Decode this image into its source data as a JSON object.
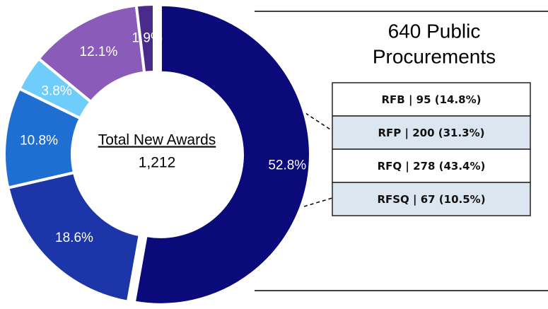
{
  "chart_data": {
    "type": "pie",
    "values": [
      52.8,
      18.6,
      10.8,
      3.8,
      12.1,
      1.9
    ],
    "value_labels": [
      "52.8%",
      "18.6%",
      "10.8%",
      "3.8%",
      "12.1%",
      "1.9%"
    ],
    "colors": [
      "#0b0a7a",
      "#1c35a8",
      "#1f6fd2",
      "#6fcdfb",
      "#8a5bb9",
      "#4a2b8c"
    ],
    "center_title": "Total New Awards",
    "center_value": {
      "value": 1212,
      "label": "1,212"
    }
  },
  "panel": {
    "title_lines": [
      "640 Public",
      "Procurements"
    ],
    "rows": [
      "RFB | 95 (14.8%)",
      "RFP | 200 (31.3%)",
      "RFQ | 278 (43.4%)",
      "RFSQ | 67 (10.5%)"
    ]
  }
}
